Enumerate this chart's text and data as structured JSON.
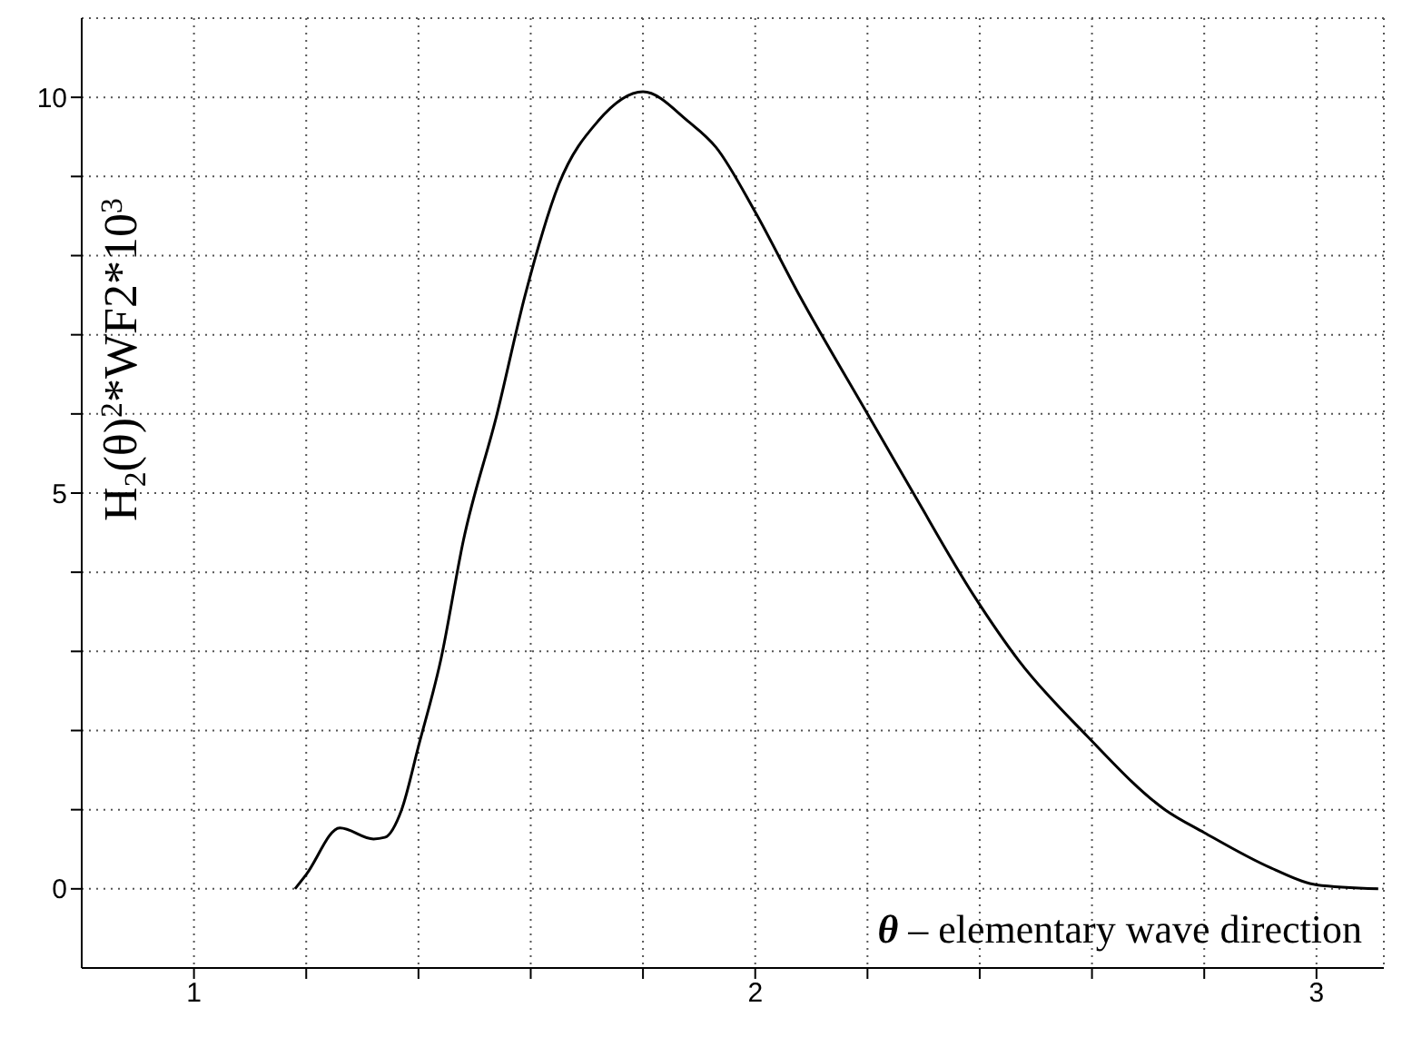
{
  "chart_data": {
    "type": "line",
    "xlabel": "θ – elementary wave direction",
    "ylabel": "H$_{2}$(θ)$^{2}$*WF2*10$^{3}$",
    "xlim": [
      0.8,
      3.12
    ],
    "ylim": [
      -1,
      11
    ],
    "xticks": [
      1,
      {
        "value": 1.2,
        "label": null
      },
      {
        "value": 1.4,
        "label": null
      },
      {
        "value": 1.6,
        "label": null
      },
      {
        "value": 1.8,
        "label": null
      },
      2,
      {
        "value": 2.2,
        "label": null
      },
      {
        "value": 2.4,
        "label": null
      },
      {
        "value": 2.6,
        "label": null
      },
      {
        "value": 2.8,
        "label": null
      },
      3
    ],
    "yticks": [
      0,
      {
        "value": 1,
        "label": null
      },
      {
        "value": 2,
        "label": null
      },
      {
        "value": 3,
        "label": null
      },
      {
        "value": 4,
        "label": null
      },
      5,
      {
        "value": 6,
        "label": null
      },
      {
        "value": 7,
        "label": null
      },
      {
        "value": 8,
        "label": null
      },
      {
        "value": 9,
        "label": null
      },
      10
    ],
    "grid": true,
    "line_style": "solid",
    "marker": "none",
    "series": [
      {
        "color": "#000000",
        "x": [
          1.18,
          1.2,
          1.26,
          1.32,
          1.34,
          1.37,
          1.4,
          1.44,
          1.48,
          1.54,
          1.59,
          1.65,
          1.72,
          1.8,
          1.88,
          1.93,
          2.0,
          2.08,
          2.2,
          2.28,
          2.39,
          2.47,
          2.59,
          2.73,
          2.8,
          2.92,
          3.0,
          3.11
        ],
        "values": [
          0.0,
          0.18,
          0.77,
          0.63,
          0.65,
          1.0,
          1.8,
          2.9,
          4.4,
          6.0,
          7.5,
          8.9,
          9.7,
          10.07,
          9.7,
          9.37,
          8.55,
          7.48,
          6.0,
          5.02,
          3.7,
          2.88,
          1.94,
          1.0,
          0.71,
          0.26,
          0.05,
          0.0
        ]
      }
    ]
  }
}
